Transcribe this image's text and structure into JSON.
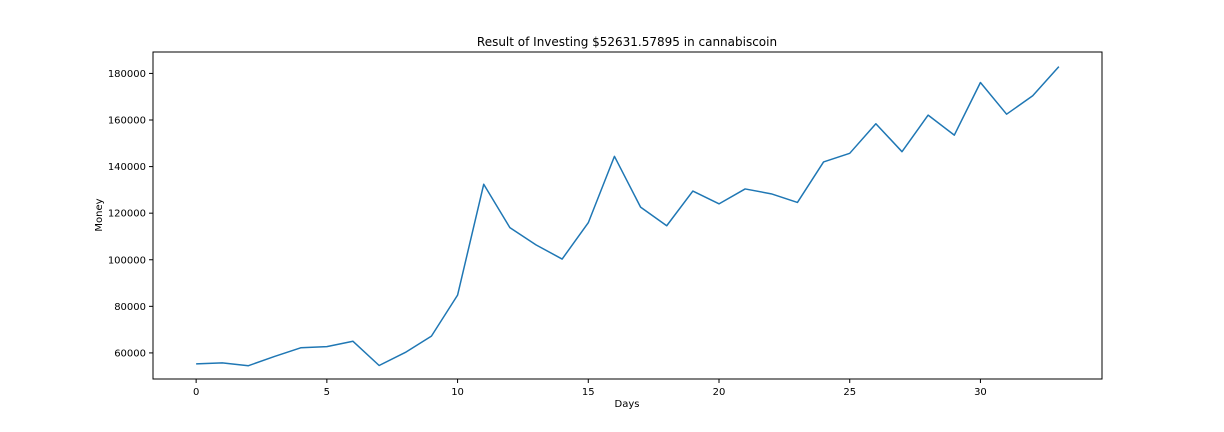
{
  "chart_data": {
    "type": "line",
    "title": "Result of Investing $52631.57895 in cannabiscoin",
    "xlabel": "Days",
    "ylabel": "Money",
    "xlim": [
      -1.65,
      34.65
    ],
    "ylim": [
      48800,
      189200
    ],
    "xticks": [
      0,
      5,
      10,
      15,
      20,
      25,
      30
    ],
    "yticks": [
      60000,
      80000,
      100000,
      120000,
      140000,
      160000,
      180000
    ],
    "grid": false,
    "series": [
      {
        "color": "#1f77b4",
        "x": [
          0,
          1,
          2,
          3,
          4,
          5,
          6,
          7,
          8,
          9,
          10,
          11,
          12,
          13,
          14,
          15,
          16,
          17,
          18,
          19,
          20,
          21,
          22,
          23,
          24,
          25,
          26,
          27,
          28,
          29,
          30,
          31,
          32,
          33
        ],
        "y": [
          55300,
          55700,
          54500,
          58500,
          62200,
          62700,
          65000,
          54600,
          60200,
          67200,
          84800,
          132400,
          113800,
          106400,
          100300,
          115900,
          144400,
          122600,
          114600,
          129500,
          124000,
          130400,
          128300,
          124600,
          142000,
          145700,
          158400,
          146400,
          162100,
          153500,
          176100,
          162500,
          170400,
          182900
        ]
      }
    ]
  }
}
